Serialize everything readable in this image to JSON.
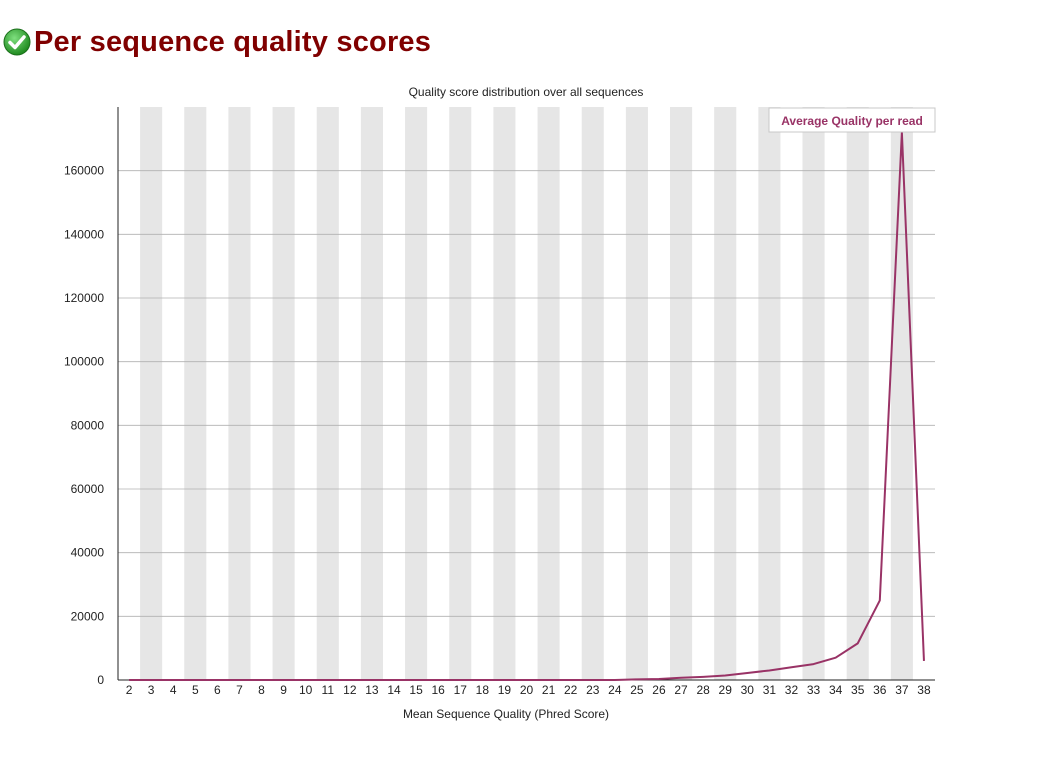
{
  "page": {
    "title": "Per sequence quality scores",
    "status_icon": "check-circle-icon",
    "status_color": "#2e9e2e"
  },
  "chart_data": {
    "type": "line",
    "title": "Quality score distribution over all sequences",
    "xlabel": "Mean Sequence Quality (Phred Score)",
    "ylabel": "",
    "x": [
      2,
      3,
      4,
      5,
      6,
      7,
      8,
      9,
      10,
      11,
      12,
      13,
      14,
      15,
      16,
      17,
      18,
      19,
      20,
      21,
      22,
      23,
      24,
      25,
      26,
      27,
      28,
      29,
      30,
      31,
      32,
      33,
      34,
      35,
      36,
      37,
      38
    ],
    "series": [
      {
        "name": "Average Quality per read",
        "color": "#993366",
        "values": [
          0,
          0,
          0,
          0,
          0,
          0,
          0,
          0,
          0,
          0,
          0,
          0,
          0,
          0,
          0,
          0,
          0,
          0,
          0,
          0,
          0,
          0,
          0,
          200,
          300,
          700,
          1000,
          1400,
          2200,
          3000,
          4000,
          5000,
          7000,
          11500,
          25000,
          172000,
          6000
        ]
      }
    ],
    "yticks": [
      0,
      20000,
      40000,
      60000,
      80000,
      100000,
      120000,
      140000,
      160000
    ],
    "ylim": [
      0,
      180000
    ],
    "legend": "top-right",
    "grid": true,
    "band_color": "#e6e6e6",
    "grid_color": "#b0b0b0"
  }
}
